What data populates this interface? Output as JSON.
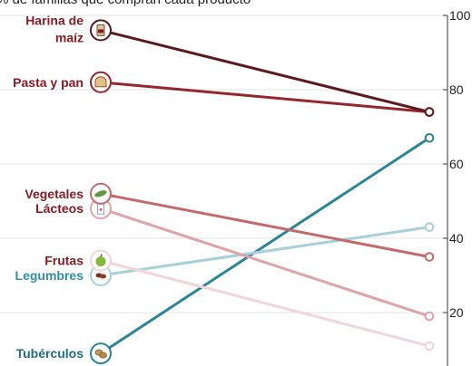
{
  "chart_data": {
    "type": "line",
    "subtitle": "% de familias que compran cada producto",
    "ylim": [
      0,
      100
    ],
    "yticks": [
      20,
      40,
      60,
      80,
      100
    ],
    "axis_position": "right",
    "grid": true,
    "series": [
      {
        "name": "Harina de maíz",
        "label_lines": [
          "Harina de",
          "maíz"
        ],
        "start": 96,
        "end": 74,
        "color": "#5c1a1f",
        "label_color": "#8b1a24",
        "icon": "flour-bag-icon"
      },
      {
        "name": "Pasta y pan",
        "label_lines": [
          "Pasta y pan"
        ],
        "start": 82,
        "end": 74,
        "color": "#96262b",
        "label_color": "#8b1a24",
        "icon": "bread-icon"
      },
      {
        "name": "Vegetales",
        "label_lines": [
          "Vegetales"
        ],
        "start": 52,
        "end": 35,
        "color": "#c46a6a",
        "label_color": "#8b1a24",
        "icon": "vegetable-icon"
      },
      {
        "name": "Lácteos",
        "label_lines": [
          "Lácteos"
        ],
        "start": 48,
        "end": 19,
        "color": "#e0a3a8",
        "label_color": "#8b1a24",
        "icon": "milk-carton-icon"
      },
      {
        "name": "Frutas",
        "label_lines": [
          "Frutas"
        ],
        "start": 34,
        "end": 11,
        "color": "#f0d6da",
        "label_color": "#8b1a24",
        "icon": "apple-icon"
      },
      {
        "name": "Legumbres",
        "label_lines": [
          "Legumbres"
        ],
        "start": 30,
        "end": 43,
        "color": "#a7d1d9",
        "label_color": "#2f8fa3",
        "icon": "bean-icon"
      },
      {
        "name": "Tubérculos",
        "label_lines": [
          "Tubérculos"
        ],
        "start": 9,
        "end": 67,
        "color": "#2a8597",
        "label_color": "#1f6f82",
        "icon": "potato-icon"
      }
    ]
  }
}
